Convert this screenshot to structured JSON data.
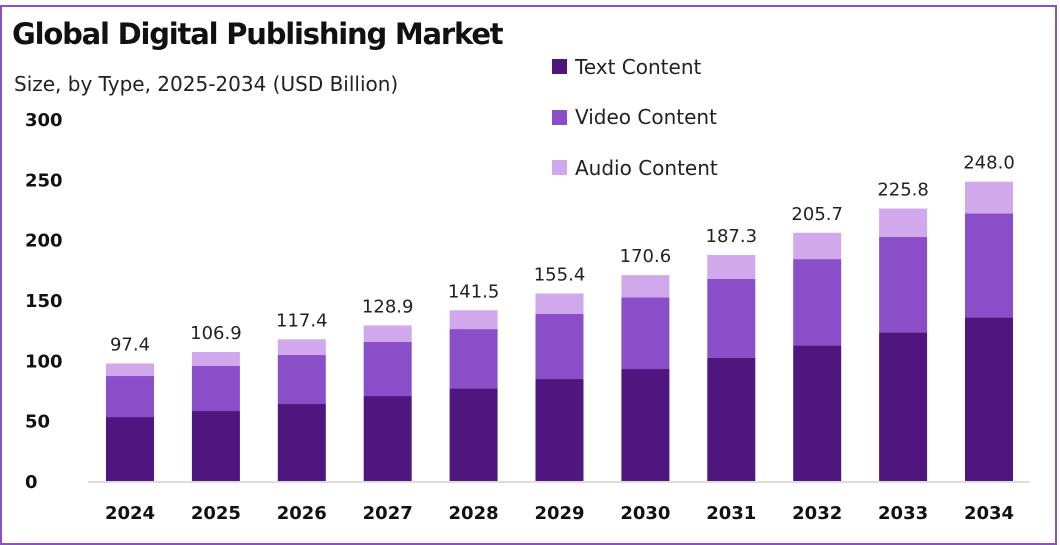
{
  "chart_data": {
    "type": "bar",
    "stacked": true,
    "title": "Global Digital Publishing Market",
    "subtitle": "Size, by Type, 2025-2034 (USD Billion)",
    "xlabel": "",
    "ylabel": "",
    "ylim": [
      0,
      300
    ],
    "yticks": [
      0,
      50,
      100,
      150,
      200,
      250,
      300
    ],
    "grid": false,
    "legend_position": "top-right",
    "categories": [
      "2024",
      "2025",
      "2026",
      "2027",
      "2028",
      "2029",
      "2030",
      "2031",
      "2032",
      "2033",
      "2034"
    ],
    "series": [
      {
        "name": "Text Content",
        "color": "#4f1680",
        "values": [
          53.0,
          58.0,
          63.8,
          70.4,
          76.8,
          84.5,
          92.8,
          102.2,
          112.4,
          123.2,
          135.6
        ]
      },
      {
        "name": "Video Content",
        "color": "#8a4fc8",
        "values": [
          34.0,
          37.5,
          40.6,
          44.8,
          49.1,
          53.9,
          59.4,
          65.2,
          71.5,
          79.0,
          86.2
        ]
      },
      {
        "name": "Audio Content",
        "color": "#d2a8ec",
        "values": [
          10.4,
          11.4,
          13.0,
          13.7,
          15.6,
          17.0,
          18.4,
          19.9,
          21.8,
          23.6,
          26.2
        ]
      }
    ],
    "totals": [
      "97.4",
      "106.9",
      "117.4",
      "128.9",
      "141.5",
      "155.4",
      "170.6",
      "187.3",
      "205.7",
      "225.8",
      "248.0"
    ]
  }
}
